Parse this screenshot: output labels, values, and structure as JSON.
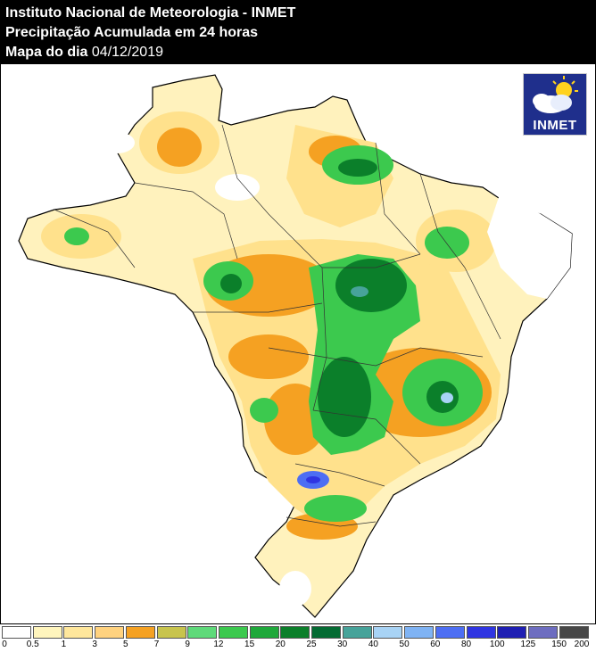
{
  "header": {
    "line1": "Instituto Nacional de Meteorologia - INMET",
    "line2": "Precipitação Acumulada em 24 horas",
    "line3_prefix": "Mapa do dia",
    "line3_date": "04/12/2019"
  },
  "logo": {
    "text": "INMET",
    "icon": "sun-cloud-icon"
  },
  "legend": {
    "colors": [
      "#ffffff",
      "#fff5bd",
      "#ffe79c",
      "#ffd27f",
      "#f5a122",
      "#c8c44d",
      "#5fda7a",
      "#3cc94e",
      "#1ea83a",
      "#0b7f2a",
      "#046b33",
      "#47a39a",
      "#a8d3f5",
      "#7fb3f4",
      "#4d6ef3",
      "#2f35e2",
      "#1f1fb3",
      "#6d6dc0",
      "#474747"
    ],
    "labels": [
      "0",
      "0.5",
      "1",
      "3",
      "5",
      "7",
      "9",
      "12",
      "15",
      "20",
      "25",
      "30",
      "40",
      "50",
      "60",
      "80",
      "100",
      "125",
      "150",
      "200"
    ]
  },
  "map": {
    "colors": {
      "land": "#fff2bd",
      "rain_light": "#ffe18c",
      "rain_mid": "#f5a122",
      "rain_green": "#3cc94e",
      "rain_dark": "#0b7f2a",
      "rain_blue": "#4d6ef3",
      "dry": "#ffffff"
    }
  }
}
